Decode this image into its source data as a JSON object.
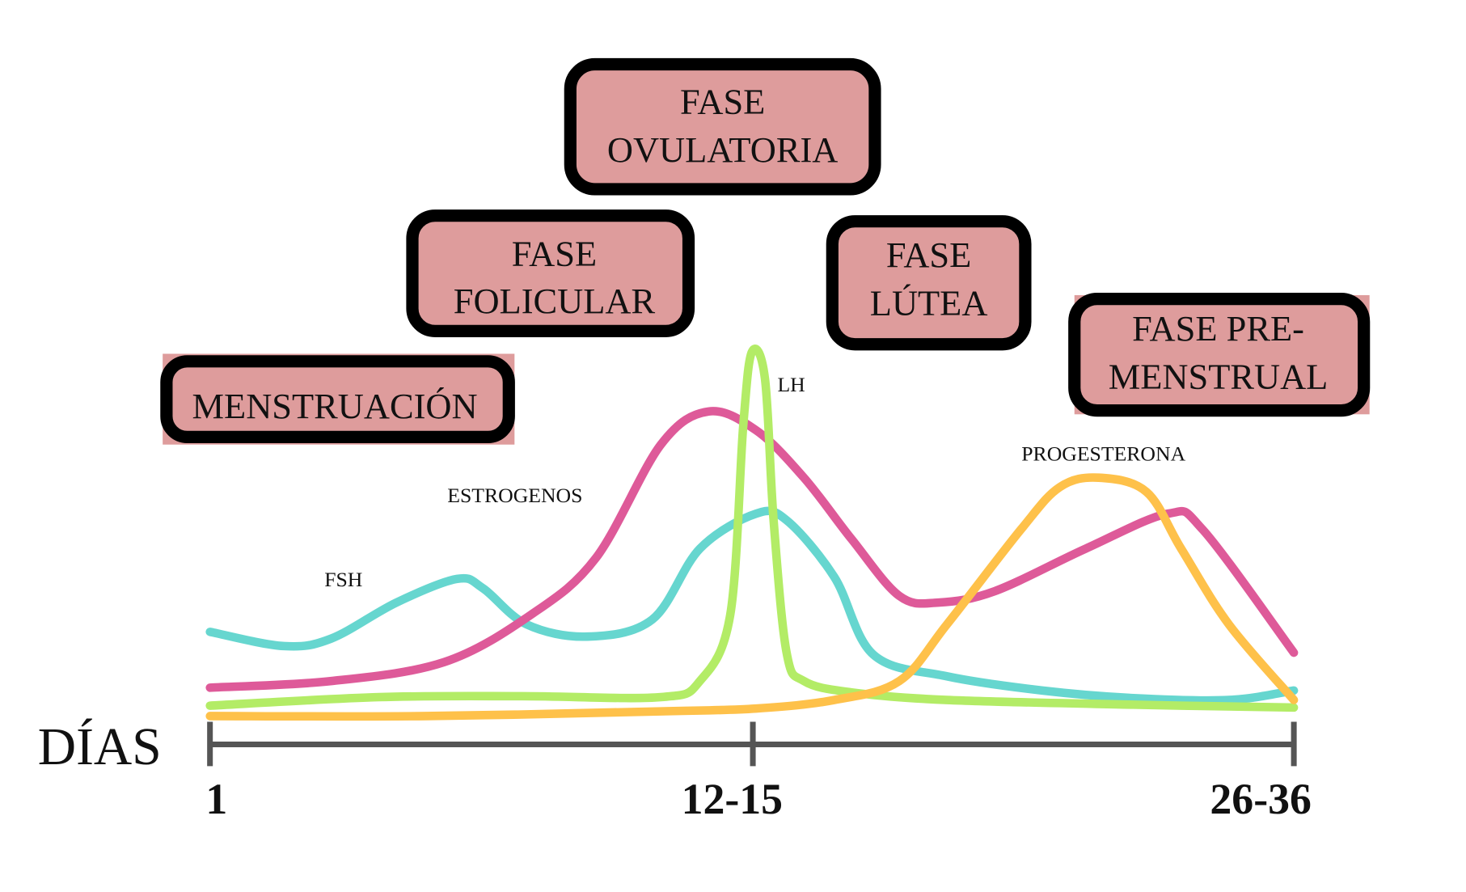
{
  "phases": {
    "ovulatoria": [
      "FASE",
      "OVULATORIA"
    ],
    "folicular": [
      "FASE",
      "FOLICULAR"
    ],
    "lutea": [
      "FASE",
      "LÚTEA"
    ],
    "premenstrual": [
      "FASE PRE-",
      "MENSTRUAL"
    ],
    "menstruacion": "MENSTRUACIÓN"
  },
  "chart_data": {
    "type": "line",
    "xlabel": "DÍAS",
    "ylabel": "",
    "x_ticks": [
      "1",
      "12-15",
      "26-36"
    ],
    "grid": false,
    "y_axis_shown": false,
    "series": [
      {
        "name": "FSH",
        "color": "#66d6cf",
        "points": [
          [
            1.0,
            25.5
          ],
          [
            2.7,
            21.75
          ],
          [
            3.8,
            23.75
          ],
          [
            5.3,
            33.25
          ],
          [
            6.7,
            39.5
          ],
          [
            7.3,
            37
          ],
          [
            8.3,
            27.5
          ],
          [
            9.7,
            24.25
          ],
          [
            11.2,
            28.75
          ],
          [
            12.3,
            47.5
          ],
          [
            13.6,
            56.75
          ],
          [
            14.3,
            55
          ],
          [
            15.4,
            40
          ],
          [
            16.3,
            19.5
          ],
          [
            18.0,
            13.75
          ],
          [
            20.2,
            10
          ],
          [
            22.3,
            8
          ],
          [
            24.5,
            7.5
          ],
          [
            26.0,
            10
          ]
        ]
      },
      {
        "name": "ESTROGENOS",
        "color": "#de5a99",
        "points": [
          [
            1.0,
            10.75
          ],
          [
            3.8,
            12.5
          ],
          [
            6.4,
            17.5
          ],
          [
            8.4,
            30
          ],
          [
            9.9,
            45
          ],
          [
            11.4,
            75
          ],
          [
            12.5,
            83.75
          ],
          [
            13.6,
            78.75
          ],
          [
            14.7,
            66.25
          ],
          [
            15.8,
            50
          ],
          [
            16.9,
            35
          ],
          [
            17.8,
            33.25
          ],
          [
            19.1,
            36.25
          ],
          [
            21.2,
            47.5
          ],
          [
            23.1,
            56.75
          ],
          [
            23.9,
            52.5
          ],
          [
            26.0,
            20
          ]
        ]
      },
      {
        "name": "LH",
        "color": "#b3ec66",
        "points": [
          [
            1.0,
            6
          ],
          [
            4.9,
            8.25
          ],
          [
            8.2,
            8.5
          ],
          [
            11.4,
            8.25
          ],
          [
            12.3,
            12.5
          ],
          [
            13.0,
            30
          ],
          [
            13.3,
            80
          ],
          [
            13.5,
            99.5
          ],
          [
            13.8,
            92.5
          ],
          [
            14.0,
            55
          ],
          [
            14.3,
            20
          ],
          [
            14.7,
            12.5
          ],
          [
            15.8,
            9.5
          ],
          [
            18.0,
            7.5
          ],
          [
            22.3,
            6.25
          ],
          [
            26.0,
            5.5
          ]
        ]
      },
      {
        "name": "PROGESTERONA",
        "color": "#fec14a",
        "points": [
          [
            1.0,
            3.25
          ],
          [
            6.0,
            3.25
          ],
          [
            11.4,
            4.5
          ],
          [
            13.6,
            5.25
          ],
          [
            15.4,
            7.5
          ],
          [
            16.9,
            12.5
          ],
          [
            18.0,
            27.5
          ],
          [
            19.7,
            52.5
          ],
          [
            20.6,
            63.75
          ],
          [
            21.5,
            66.25
          ],
          [
            22.6,
            62.5
          ],
          [
            23.4,
            47.5
          ],
          [
            24.5,
            27.5
          ],
          [
            26.0,
            7.5
          ]
        ]
      }
    ]
  }
}
